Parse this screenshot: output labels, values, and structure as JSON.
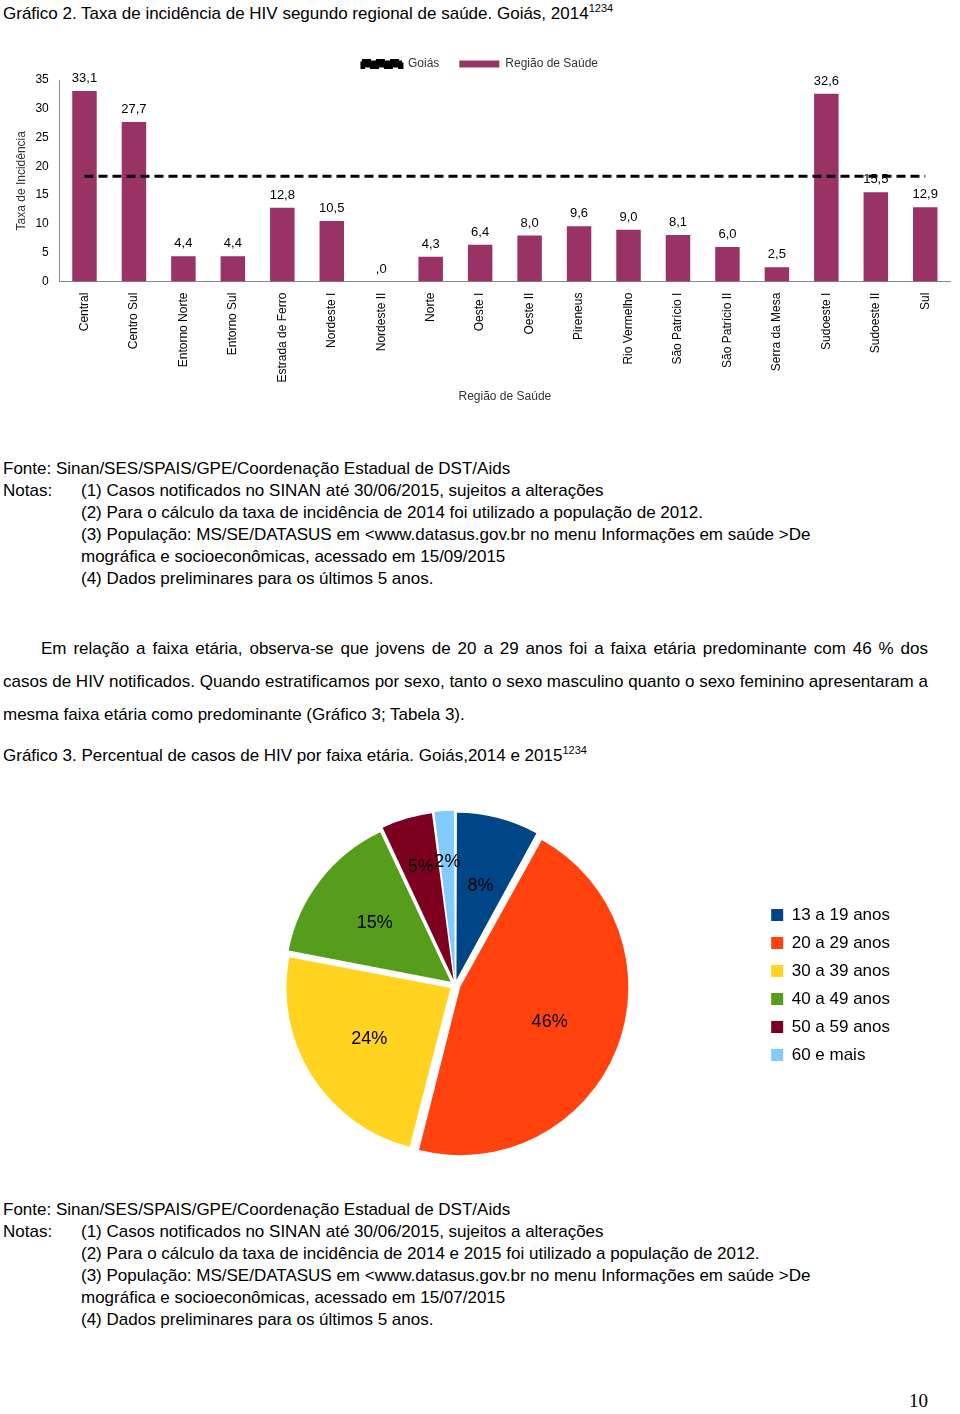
{
  "chart_data": [
    {
      "type": "bar",
      "title": "Gráfico 2. Taxa de incidência de HIV segundo regional de saúde. Goiás, 2014",
      "title_superscript": "1234",
      "x_label": "Região de Saúde",
      "y_label": "Taxa de Incidência",
      "categories": [
        "Central",
        "Centro Sul",
        "Entorno Norte",
        "Entorno Sul",
        "Estrada de Ferro",
        "Nordeste I",
        "Nordeste II",
        "Norte",
        "Oeste I",
        "Oeste II",
        "Pireneus",
        "Rio Vermelho",
        "São Patrício I",
        "São Patrício II",
        "Serra da Mesa",
        "Sudoeste I",
        "Sudoeste II",
        "Sul"
      ],
      "series": [
        {
          "name": "Região de Saúde",
          "type": "bar",
          "color": "#993366",
          "values": [
            33.1,
            27.7,
            4.4,
            4.4,
            12.8,
            10.5,
            0,
            4.3,
            6.4,
            8.0,
            9.6,
            9.0,
            8.1,
            6.0,
            2.5,
            32.6,
            15.5,
            12.9
          ],
          "value_labels": [
            "33,1",
            "27,7",
            "4,4",
            "4,4",
            "12,8",
            "10,5",
            ",0",
            "4,3",
            "6,4",
            "8,0",
            "9,6",
            "9,0",
            "8,1",
            "6,0",
            "2,5",
            "32,6",
            "15,5",
            "12,9"
          ]
        },
        {
          "name": "Goiás",
          "type": "line",
          "color": "#000000",
          "line_style": "dashed",
          "marker": "none",
          "values": [
            18.3,
            18.3,
            18.3,
            18.3,
            18.3,
            18.3,
            18.3,
            18.3,
            18.3,
            18.3,
            18.3,
            18.3,
            18.3,
            18.3,
            18.3,
            18.3,
            18.3,
            18.3
          ]
        }
      ],
      "ylim": [
        0,
        35
      ],
      "yticks": [
        0,
        5,
        10,
        15,
        20,
        25,
        30,
        35
      ],
      "grid": false,
      "legend": "top",
      "data_labels": true
    },
    {
      "type": "pie",
      "title": "Gráfico 3. Percentual de casos de HIV por faixa etária. Goiás,2014 e 2015",
      "title_superscript": "1234",
      "categories": [
        "13 a 19 anos",
        "20 a 29 anos",
        "30 a 39 anos",
        "40 a 49 anos",
        "50 a 59 anos",
        "60 e mais"
      ],
      "values": [
        8,
        46,
        24,
        15,
        5,
        2
      ],
      "value_labels": [
        "8%",
        "46%",
        "24%",
        "15%",
        "5%",
        "2%"
      ],
      "colors": [
        "#004586",
        "#ff420e",
        "#ffd320",
        "#579d1c",
        "#7e0021",
        "#83caff"
      ],
      "legend": "right",
      "data_labels": true
    }
  ],
  "figure_2_notes": {
    "source": "Fonte: Sinan/SES/SPAIS/GPE/Coordenação Estadual de DST/Aids",
    "notes_label": "Notas:",
    "notes": [
      [
        "(1) Casos notificados no SINAN até 30/06/2015, sujeitos a alterações"
      ],
      [
        "(2) Para o cálculo da taxa de incidência de 2014 foi utilizado a população de 2012."
      ],
      [
        "(3) População: MS/SE/DATASUS em <www.datasus.gov.br no menu Informações em saúde >De",
        "mográfica e socioeconômicas, acessado em 15/09/2015"
      ],
      [
        "(4) Dados preliminares para os últimos 5 anos."
      ]
    ]
  },
  "paragraph": "Em relação a faixa etária, observa-se que jovens de 20 a 29 anos foi a faixa etária predominante com 46 % dos casos de HIV notificados. Quando estratificamos por sexo, tanto o sexo masculino quanto o sexo feminino apresentaram a mesma faixa etária como predominante (Gráfico 3; Tabela 3).",
  "figure_3_notes": {
    "source": "Fonte: Sinan/SES/SPAIS/GPE/Coordenação Estadual de DST/Aids",
    "notes_label": "Notas:",
    "notes": [
      [
        "(1) Casos notificados no SINAN até 30/06/2015, sujeitos a alterações"
      ],
      [
        "(2) Para o cálculo da taxa de incidência de 2014 e 2015 foi utilizado a população de 2012."
      ],
      [
        "(3) População: MS/SE/DATASUS em <www.datasus.gov.br no menu Informações em saúde >De",
        "mográfica e socioeconômicas, acessado em 15/07/2015"
      ],
      [
        "(4) Dados preliminares para os últimos 5 anos."
      ]
    ]
  },
  "page_number": "10"
}
